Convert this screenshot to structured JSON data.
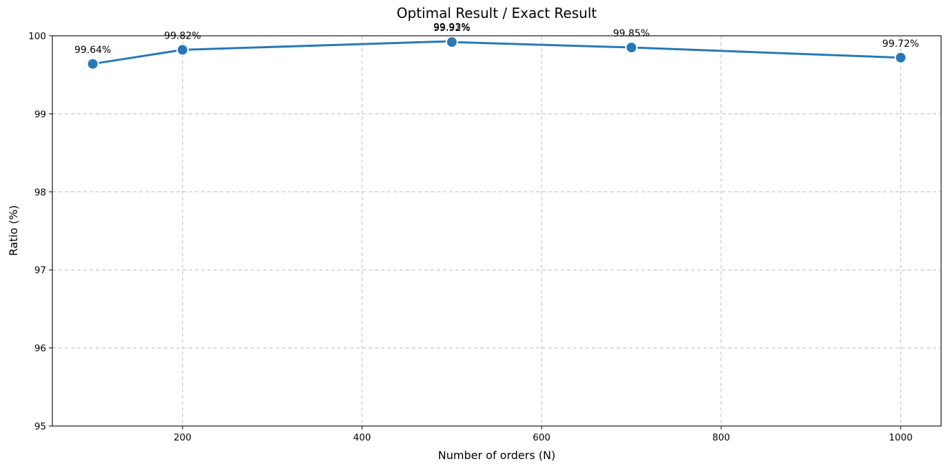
{
  "chart_data": {
    "type": "line",
    "title": "Optimal Result / Exact Result",
    "xlabel": "Number of orders (N)",
    "ylabel": "Ratio (%)",
    "xlim": [
      55,
      1045
    ],
    "ylim": [
      95,
      100
    ],
    "x_ticks": [
      200,
      400,
      600,
      800,
      1000
    ],
    "y_ticks": [
      95,
      96,
      97,
      98,
      99,
      100
    ],
    "grid": true,
    "series": [
      {
        "color": "#2878b5",
        "points": [
          {
            "x": 100,
            "y": 99.64,
            "label": "99.64%"
          },
          {
            "x": 200,
            "y": 99.82,
            "label": "99.82%"
          },
          {
            "x": 500,
            "y": 99.93,
            "label": "99.93%"
          },
          {
            "x": 500,
            "y": 99.92,
            "label": "99.92%"
          },
          {
            "x": 700,
            "y": 99.85,
            "label": "99.85%"
          },
          {
            "x": 1000,
            "y": 99.72,
            "label": "99.72%"
          }
        ]
      }
    ]
  }
}
